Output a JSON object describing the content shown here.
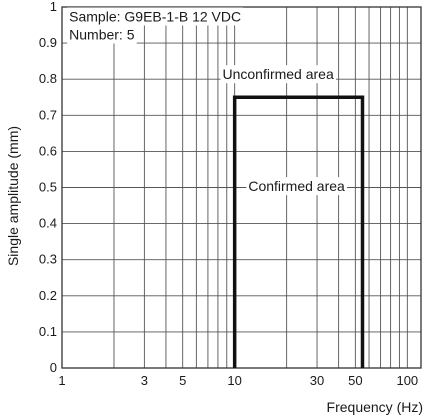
{
  "chart_data": {
    "type": "line",
    "xlabel": "Frequency (Hz)",
    "ylabel": "Single amplitude (mm)",
    "x_scale": "log",
    "xlim": [
      1,
      120
    ],
    "ylim": [
      0,
      1
    ],
    "x_ticks": [
      1,
      3,
      5,
      10,
      30,
      50,
      100
    ],
    "x_tick_labels": [
      "1",
      "3",
      "5",
      "10",
      "30",
      "50",
      "100"
    ],
    "y_ticks": [
      0,
      0.1,
      0.2,
      0.3,
      0.4,
      0.5,
      0.6,
      0.7,
      0.8,
      0.9,
      1
    ],
    "y_tick_labels": [
      "0",
      "0.1",
      "0.2",
      "0.3",
      "0.4",
      "0.5",
      "0.6",
      "0.7",
      "0.8",
      "0.9",
      "1"
    ],
    "grid": true,
    "series": [
      {
        "x": [
          10,
          10,
          55,
          55
        ],
        "y": [
          0,
          0.75,
          0.75,
          0
        ]
      }
    ],
    "annotations": [
      {
        "text": "Sample: G9EB-1-B 12 VDC",
        "x": 1.1,
        "y": 0.96
      },
      {
        "text": "Number: 5",
        "x": 1.1,
        "y": 0.91
      },
      {
        "text": "Unconfirmed area",
        "x": 8.5,
        "y": 0.8
      },
      {
        "text": "Confirmed area",
        "x": 12,
        "y": 0.49
      }
    ]
  }
}
